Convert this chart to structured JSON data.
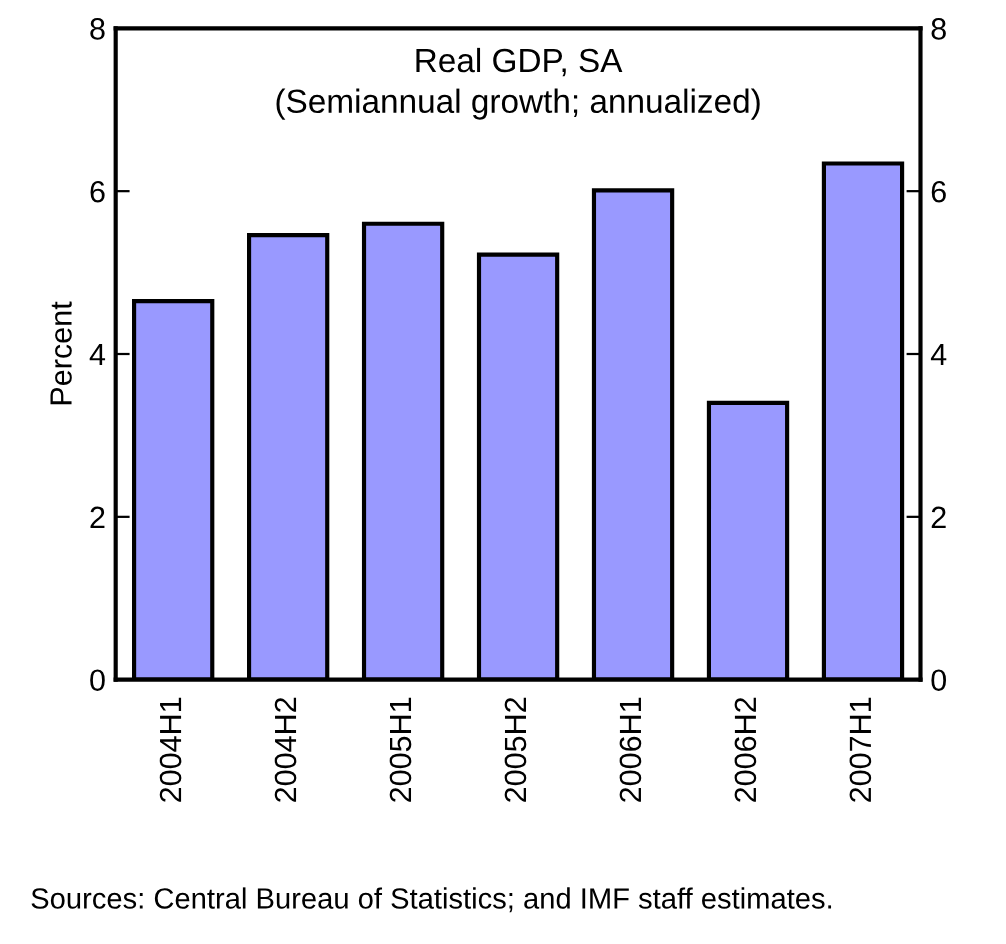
{
  "chart_data": {
    "type": "bar",
    "title": "Real GDP, SA\n(Semiannual growth; annualized)",
    "ylabel": "Percent",
    "categories": [
      "2004H1",
      "2004H2",
      "2005H1",
      "2005H2",
      "2006H1",
      "2006H2",
      "2007H1"
    ],
    "values": [
      4.65,
      5.46,
      5.6,
      5.22,
      6.01,
      3.4,
      6.34
    ],
    "color": "#9999ff",
    "ylim": [
      0,
      8
    ],
    "yticks": [
      0,
      2,
      4,
      6,
      8
    ],
    "y2lim": [
      0,
      8
    ],
    "y2ticks": [
      0,
      2,
      4,
      6,
      8
    ],
    "grid": false,
    "annotations": [
      "Sources: Central Bureau of Statistics; and IMF staff estimates."
    ]
  }
}
